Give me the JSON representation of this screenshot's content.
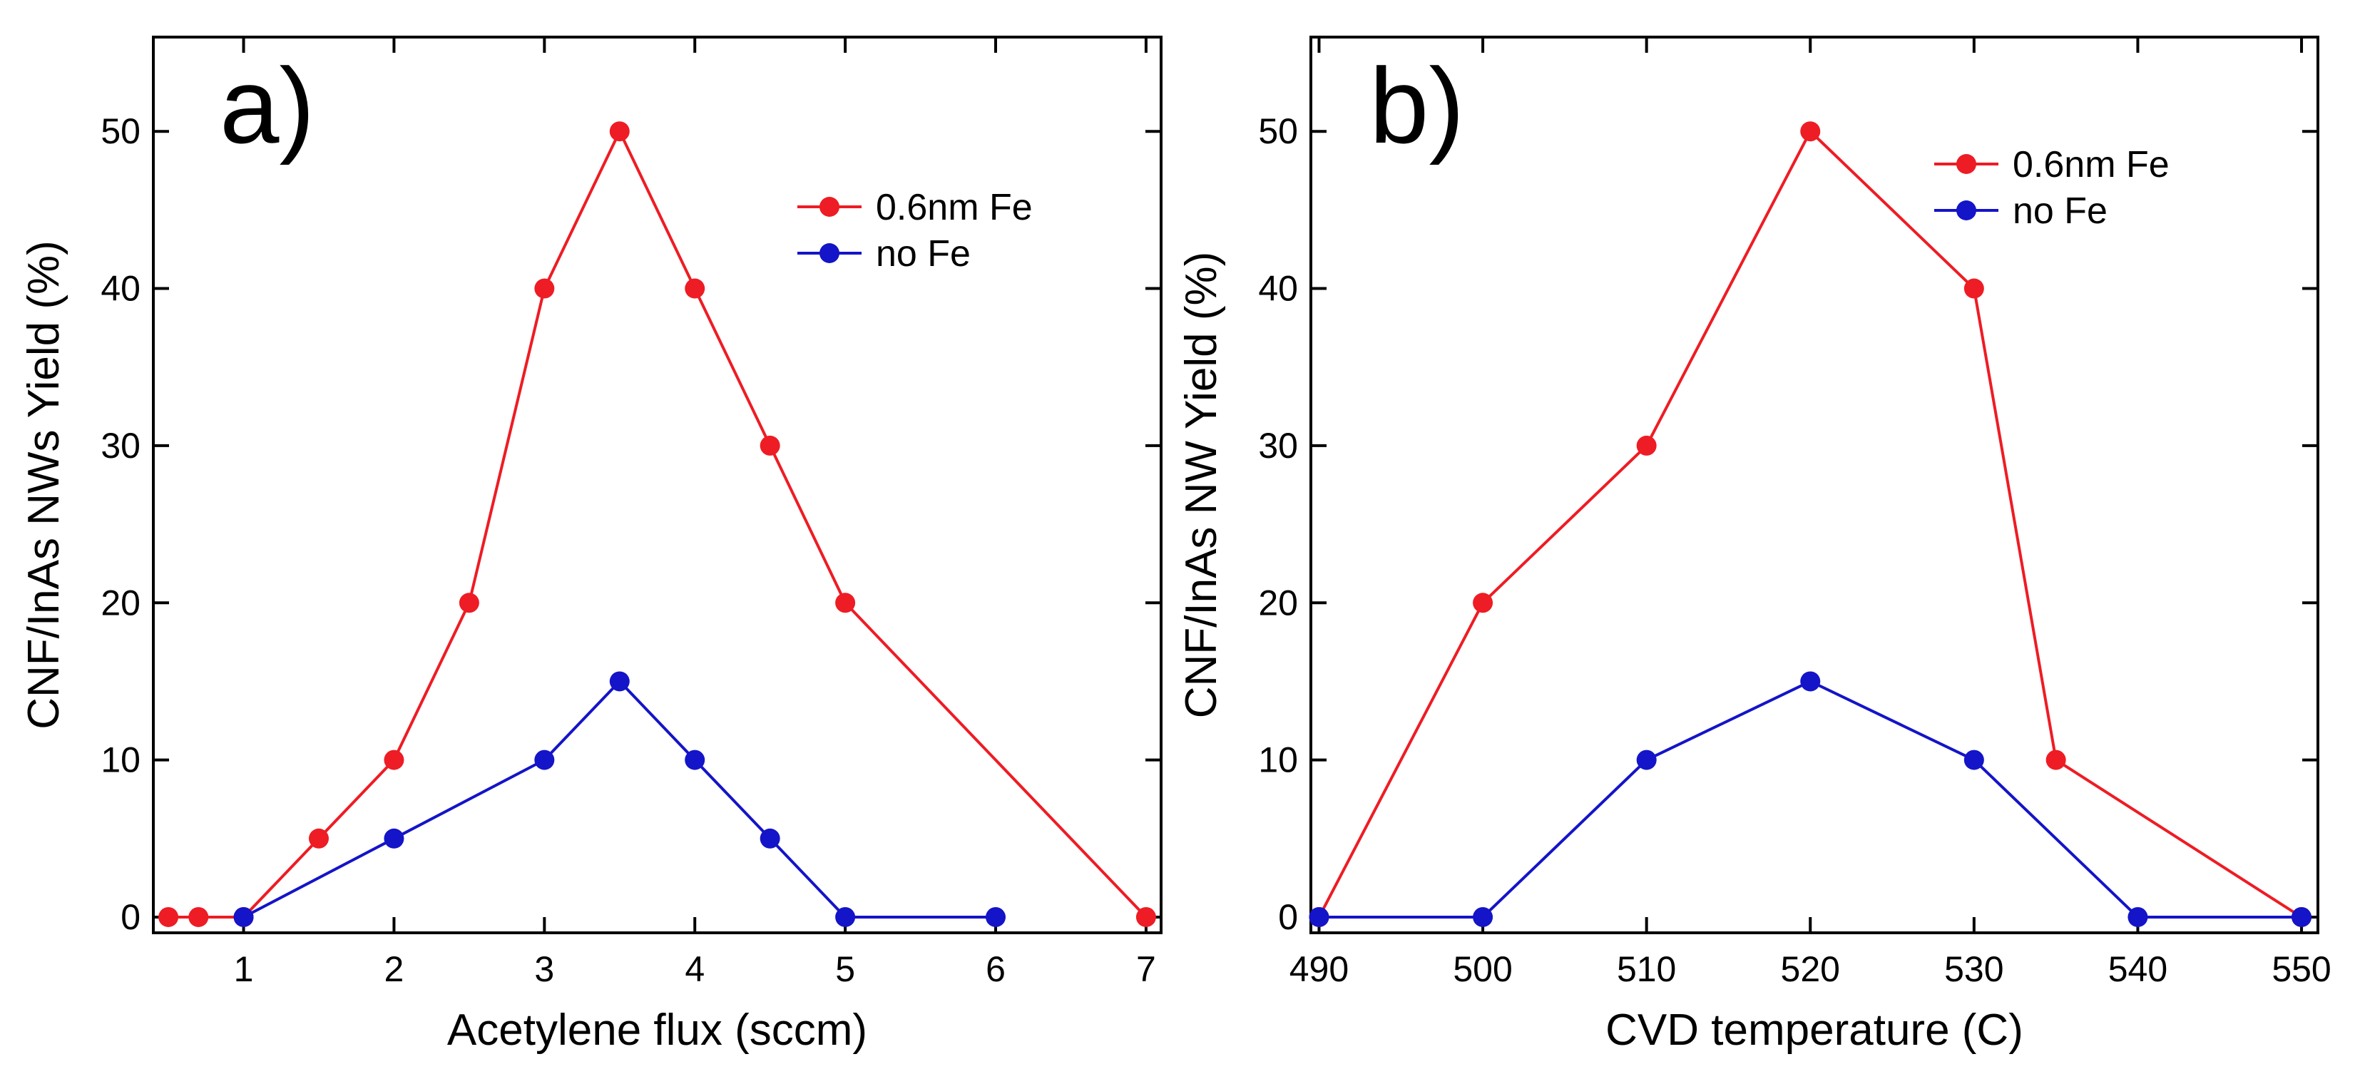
{
  "figure": {
    "panels": 2
  },
  "chart_data": [
    {
      "type": "line",
      "panel_label": "a)",
      "title": "",
      "xlabel": "Acetylene flux (sccm)",
      "ylabel": "CNF/InAs NWs Yield (%)",
      "xlim": [
        0.4,
        7.1
      ],
      "ylim": [
        -1,
        56
      ],
      "xticks": [
        1,
        2,
        3,
        4,
        5,
        6,
        7
      ],
      "yticks": [
        0,
        10,
        20,
        30,
        40,
        50
      ],
      "grid": false,
      "legend_position": "top-right",
      "series": [
        {
          "name": "0.6nm Fe",
          "color": "#ee1c24",
          "x": [
            0.5,
            0.7,
            1,
            1.5,
            2,
            2.5,
            3,
            3.5,
            4,
            4.5,
            5,
            7
          ],
          "y": [
            0,
            0,
            0,
            5,
            10,
            20,
            40,
            50,
            40,
            30,
            20,
            0
          ]
        },
        {
          "name": "no Fe",
          "color": "#1414c8",
          "x": [
            1,
            2,
            3,
            3.5,
            4,
            4.5,
            5,
            6
          ],
          "y": [
            0,
            5,
            10,
            15,
            10,
            5,
            0,
            0
          ]
        }
      ]
    },
    {
      "type": "line",
      "panel_label": "b)",
      "title": "",
      "xlabel": "CVD temperature (C)",
      "ylabel": "CNF/InAs NW Yield (%)",
      "xlim": [
        489.5,
        551
      ],
      "ylim": [
        -1,
        56
      ],
      "xticks": [
        490,
        500,
        510,
        520,
        530,
        540,
        550
      ],
      "yticks": [
        0,
        10,
        20,
        30,
        40,
        50
      ],
      "grid": false,
      "legend_position": "top-right",
      "series": [
        {
          "name": "0.6nm Fe",
          "color": "#ee1c24",
          "x": [
            490,
            500,
            510,
            520,
            530,
            535,
            550
          ],
          "y": [
            0,
            20,
            30,
            50,
            40,
            10,
            0
          ]
        },
        {
          "name": "no Fe",
          "color": "#1414c8",
          "x": [
            490,
            500,
            510,
            520,
            530,
            540,
            550
          ],
          "y": [
            0,
            0,
            10,
            15,
            10,
            0,
            0
          ]
        }
      ]
    }
  ]
}
